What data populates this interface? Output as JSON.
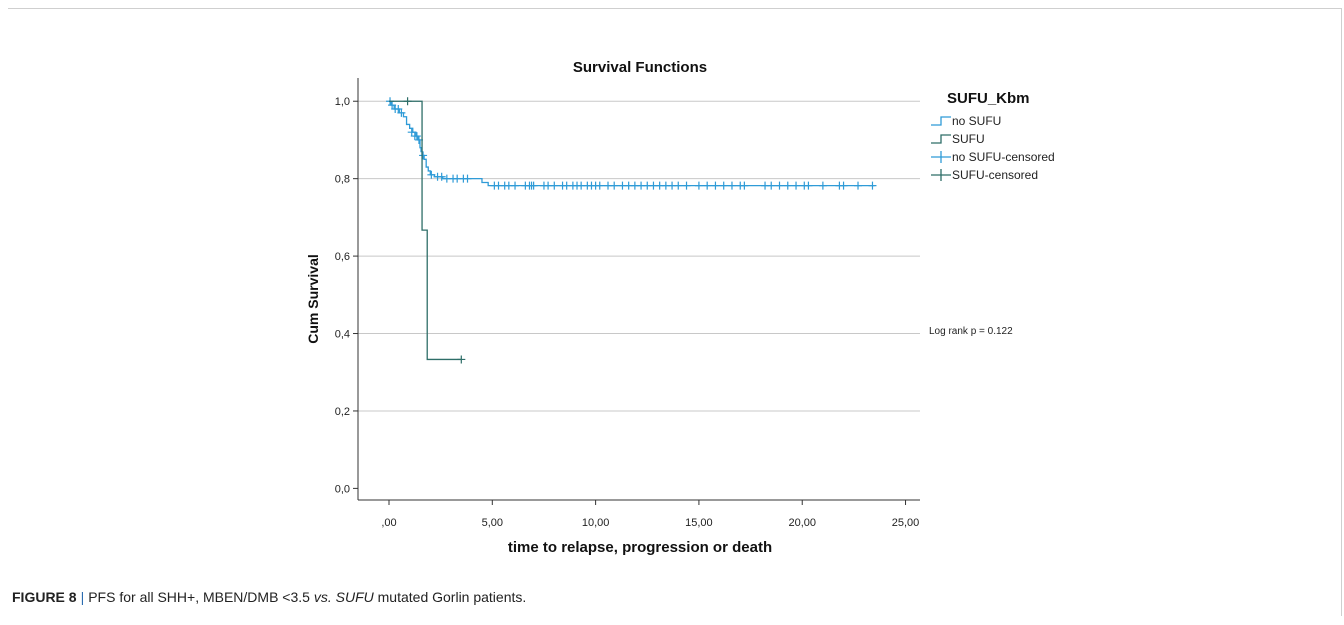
{
  "chart_data": {
    "type": "line",
    "subtype": "kaplan-meier step",
    "title": "Survival Functions",
    "xlabel": "time to relapse, progression or death",
    "ylabel": "Cum Survival",
    "xlim": [
      -1.5,
      25.7
    ],
    "ylim": [
      -0.03,
      1.06
    ],
    "xticks": [
      0,
      5,
      10,
      15,
      20,
      25
    ],
    "xtick_labels": [
      ",00",
      "5,00",
      "10,00",
      "15,00",
      "20,00",
      "25,00"
    ],
    "yticks": [
      0,
      0.2,
      0.4,
      0.6,
      0.8,
      1.0
    ],
    "ytick_labels": [
      "0,0",
      "0,2",
      "0,4",
      "0,6",
      "0,8",
      "1,0"
    ],
    "grid": "horizontal",
    "legend": {
      "title": "SUFU_Kbm",
      "position": "right",
      "entries": [
        "no SUFU",
        "SUFU",
        "no SUFU-censored",
        "SUFU-censored"
      ]
    },
    "annotation": "Log rank p = 0.122",
    "colors": {
      "no_sufu": "#2f9bd7",
      "sufu": "#2e6e68"
    },
    "series": [
      {
        "name": "no SUFU",
        "steps": [
          [
            0,
            1.0
          ],
          [
            0.1,
            0.99
          ],
          [
            0.25,
            0.98
          ],
          [
            0.5,
            0.97
          ],
          [
            0.7,
            0.96
          ],
          [
            0.85,
            0.94
          ],
          [
            1.0,
            0.93
          ],
          [
            1.15,
            0.92
          ],
          [
            1.3,
            0.91
          ],
          [
            1.4,
            0.9
          ],
          [
            1.5,
            0.88
          ],
          [
            1.55,
            0.87
          ],
          [
            1.6,
            0.86
          ],
          [
            1.7,
            0.85
          ],
          [
            1.8,
            0.83
          ],
          [
            1.9,
            0.82
          ],
          [
            2.0,
            0.81
          ],
          [
            2.2,
            0.805
          ],
          [
            2.6,
            0.8
          ],
          [
            4.5,
            0.79
          ],
          [
            4.8,
            0.782
          ],
          [
            23.5,
            0.782
          ]
        ],
        "censored": [
          [
            0.05,
            1.0
          ],
          [
            0.15,
            0.99
          ],
          [
            0.3,
            0.98
          ],
          [
            0.45,
            0.98
          ],
          [
            0.6,
            0.97
          ],
          [
            1.1,
            0.92
          ],
          [
            1.25,
            0.91
          ],
          [
            1.35,
            0.91
          ],
          [
            1.45,
            0.9
          ],
          [
            1.65,
            0.86
          ],
          [
            2.05,
            0.81
          ],
          [
            2.35,
            0.805
          ],
          [
            2.55,
            0.805
          ],
          [
            2.8,
            0.8
          ],
          [
            3.1,
            0.8
          ],
          [
            3.3,
            0.8
          ],
          [
            3.6,
            0.8
          ],
          [
            3.8,
            0.8
          ],
          [
            5.1,
            0.782
          ],
          [
            5.3,
            0.782
          ],
          [
            5.6,
            0.782
          ],
          [
            5.8,
            0.782
          ],
          [
            6.1,
            0.782
          ],
          [
            6.6,
            0.782
          ],
          [
            6.8,
            0.782
          ],
          [
            6.9,
            0.782
          ],
          [
            7.0,
            0.782
          ],
          [
            7.5,
            0.782
          ],
          [
            7.7,
            0.782
          ],
          [
            8.0,
            0.782
          ],
          [
            8.4,
            0.782
          ],
          [
            8.6,
            0.782
          ],
          [
            8.9,
            0.782
          ],
          [
            9.1,
            0.782
          ],
          [
            9.3,
            0.782
          ],
          [
            9.6,
            0.782
          ],
          [
            9.8,
            0.782
          ],
          [
            10.0,
            0.782
          ],
          [
            10.2,
            0.782
          ],
          [
            10.6,
            0.782
          ],
          [
            10.9,
            0.782
          ],
          [
            11.3,
            0.782
          ],
          [
            11.6,
            0.782
          ],
          [
            11.9,
            0.782
          ],
          [
            12.2,
            0.782
          ],
          [
            12.5,
            0.782
          ],
          [
            12.8,
            0.782
          ],
          [
            13.1,
            0.782
          ],
          [
            13.4,
            0.782
          ],
          [
            13.7,
            0.782
          ],
          [
            14.0,
            0.782
          ],
          [
            14.4,
            0.782
          ],
          [
            15.0,
            0.782
          ],
          [
            15.4,
            0.782
          ],
          [
            15.8,
            0.782
          ],
          [
            16.2,
            0.782
          ],
          [
            16.6,
            0.782
          ],
          [
            17.0,
            0.782
          ],
          [
            17.2,
            0.782
          ],
          [
            18.2,
            0.782
          ],
          [
            18.5,
            0.782
          ],
          [
            18.9,
            0.782
          ],
          [
            19.3,
            0.782
          ],
          [
            19.7,
            0.782
          ],
          [
            20.1,
            0.782
          ],
          [
            20.3,
            0.782
          ],
          [
            21.0,
            0.782
          ],
          [
            21.8,
            0.782
          ],
          [
            22.0,
            0.782
          ],
          [
            22.7,
            0.782
          ],
          [
            23.4,
            0.782
          ]
        ]
      },
      {
        "name": "SUFU",
        "steps": [
          [
            0,
            1.0
          ],
          [
            1.6,
            1.0
          ],
          [
            1.6,
            0.667
          ],
          [
            1.85,
            0.667
          ],
          [
            1.85,
            0.333
          ],
          [
            3.5,
            0.333
          ]
        ],
        "censored": [
          [
            0.9,
            1.0
          ],
          [
            3.5,
            0.333
          ]
        ]
      }
    ]
  },
  "caption": {
    "label": "FIGURE 8",
    "separator": "|",
    "text_before": "PFS for all SHH+, MBEN/DMB <3.5 ",
    "vs": "vs.",
    "space": " ",
    "gene": "SUFU",
    "text_after": " mutated Gorlin patients."
  }
}
